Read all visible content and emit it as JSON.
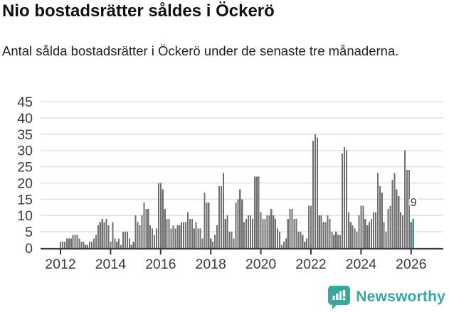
{
  "header": {
    "title": "Nio bostadsrätter såldes i Öckerö",
    "subtitle": "Antal sålda bostadsrätter i Öckerö under de senaste tre månaderna."
  },
  "chart_data": {
    "type": "bar",
    "title": "Nio bostadsrätter såldes i Öckerö",
    "subtitle": "Antal sålda bostadsrätter i Öckerö under de senaste tre månaderna.",
    "xlabel": "",
    "ylabel": "",
    "x_start": "2012-01",
    "frequency": "monthly",
    "values": [
      2,
      2,
      2,
      3,
      3,
      3,
      4,
      4,
      4,
      3,
      2,
      2,
      1,
      1,
      2,
      2,
      3,
      4,
      7,
      8,
      9,
      8,
      9,
      7,
      2,
      8,
      3,
      2,
      3,
      1,
      5,
      5,
      5,
      3,
      1,
      2,
      10,
      8,
      7,
      10,
      14,
      12,
      12,
      7,
      6,
      4,
      6,
      20,
      20,
      18,
      12,
      9,
      9,
      6,
      7,
      6,
      7,
      7,
      8,
      8,
      8,
      11,
      9,
      9,
      6,
      8,
      6,
      6,
      3,
      17,
      14,
      14,
      3,
      2,
      4,
      7,
      19,
      19,
      23,
      9,
      10,
      5,
      5,
      3,
      14,
      15,
      18,
      15,
      8,
      9,
      10,
      10,
      9,
      22,
      22,
      22,
      11,
      9,
      9,
      10,
      10,
      12,
      10,
      9,
      6,
      5,
      1,
      2,
      3,
      9,
      12,
      12,
      9,
      9,
      5,
      5,
      4,
      2,
      3,
      13,
      13,
      33,
      35,
      34,
      10,
      10,
      8,
      8,
      10,
      9,
      5,
      4,
      5,
      4,
      4,
      29,
      31,
      30,
      11,
      8,
      7,
      6,
      5,
      10,
      13,
      13,
      9,
      7,
      8,
      9,
      11,
      11,
      23,
      19,
      17,
      8,
      5,
      12,
      13,
      21,
      23,
      18,
      16,
      11,
      10,
      30,
      24,
      24,
      8,
      9
    ],
    "ylim": [
      0,
      45
    ],
    "y_ticks": [
      0,
      5,
      10,
      15,
      20,
      25,
      30,
      35,
      40,
      45
    ],
    "x_tick_years": [
      2012,
      2014,
      2016,
      2018,
      2020,
      2022,
      2024,
      2026
    ],
    "grid": true,
    "legend": "none",
    "bar_color": "#6e6e73",
    "highlight_color": "#00a5a0",
    "highlight_last": true,
    "last_value_label": "9"
  },
  "footer": {
    "brand": "Newsworthy",
    "brand_color": "#3aa79f"
  }
}
